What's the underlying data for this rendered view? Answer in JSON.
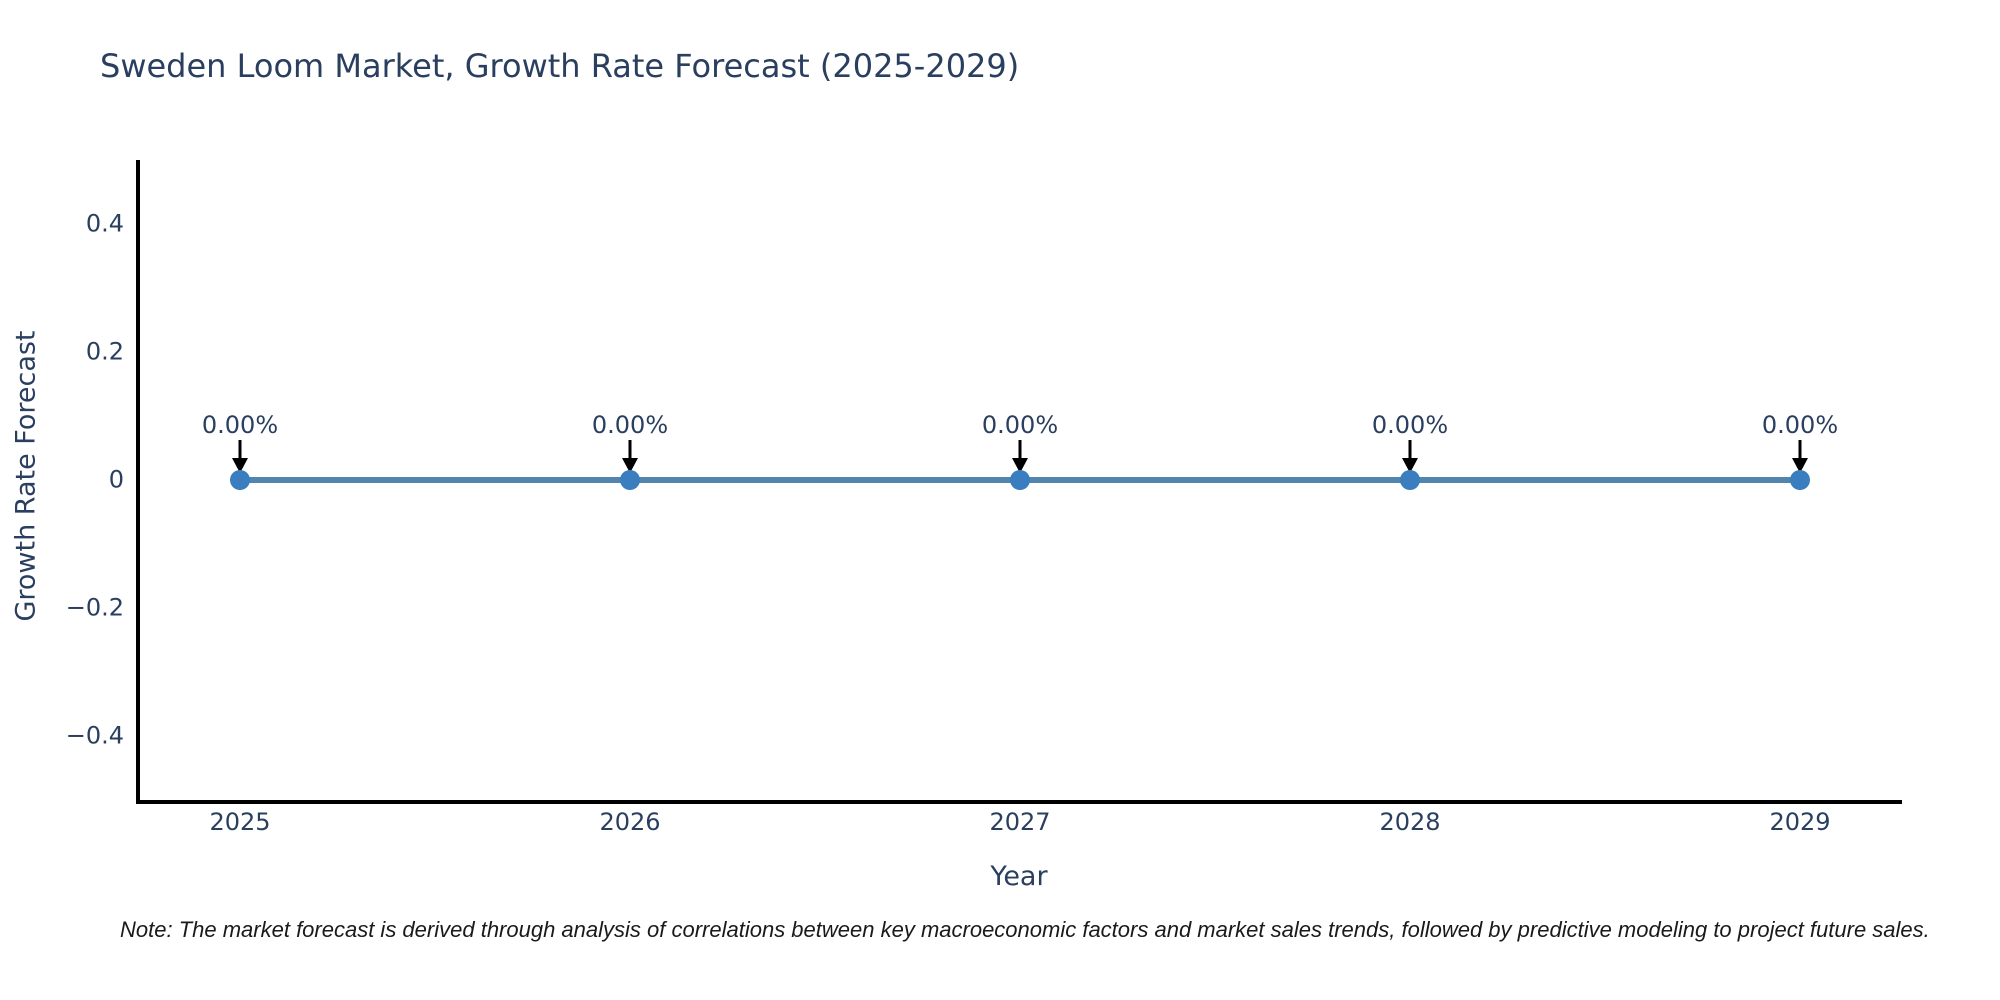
{
  "figure": {
    "note": "Note: The market forecast is derived through analysis of correlations between key macroeconomic factors and market sales trends, followed by predictive modeling to project future sales."
  },
  "chart_data": {
    "type": "line",
    "title": "Sweden Loom Market, Growth Rate Forecast (2025-2029)",
    "xlabel": "Year",
    "ylabel": "Growth Rate Forecast",
    "categories": [
      "2025",
      "2026",
      "2027",
      "2028",
      "2029"
    ],
    "series": [
      {
        "name": "Growth Rate Forecast",
        "values": [
          0,
          0,
          0,
          0,
          0
        ]
      }
    ],
    "point_labels": [
      "0.00%",
      "0.00%",
      "0.00%",
      "0.00%",
      "0.00%"
    ],
    "ylim": [
      -0.5,
      0.5
    ],
    "yticks": [
      {
        "value": 0.4,
        "label": "0.4"
      },
      {
        "value": 0.2,
        "label": "0.2"
      },
      {
        "value": 0,
        "label": "0"
      },
      {
        "value": -0.2,
        "label": "−0.2"
      },
      {
        "value": -0.4,
        "label": "−0.4"
      }
    ],
    "grid": false,
    "legend": "none",
    "colors": {
      "line": "#5285ad",
      "marker": "#3a7ebf",
      "arrow": "#000000",
      "axis": "#000000",
      "text": "#2a3f5f",
      "note_text": "#1a1a1a",
      "background": "#ffffff"
    }
  }
}
